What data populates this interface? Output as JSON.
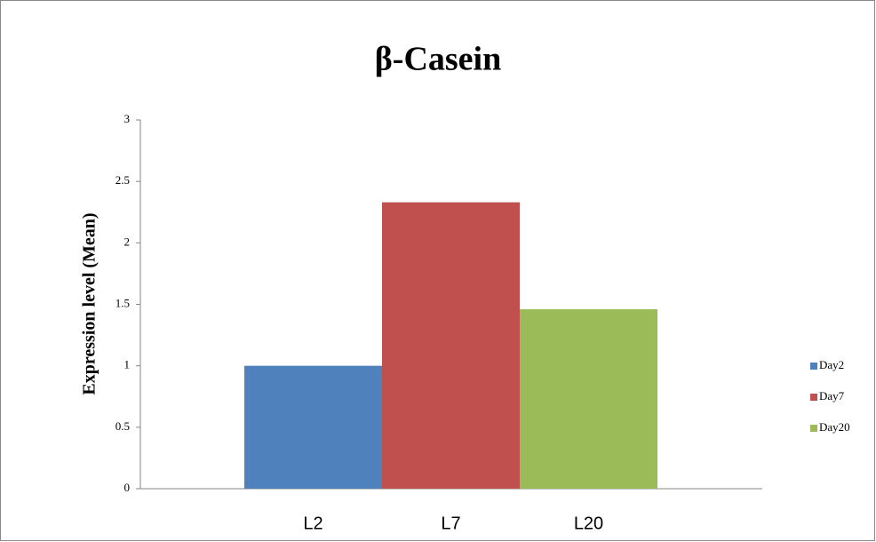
{
  "chart_data": {
    "type": "bar",
    "title": "β-Casein",
    "y_label": "Expression level (Mean)",
    "categories": [
      "L2",
      "L7",
      "L20"
    ],
    "series": [
      {
        "name": "Day2",
        "color": "#4f81bd",
        "values": [
          1.0,
          null,
          null
        ]
      },
      {
        "name": "Day7",
        "color": "#c0504d",
        "values": [
          null,
          2.33,
          null
        ]
      },
      {
        "name": "Day20",
        "color": "#9bbb59",
        "values": [
          null,
          null,
          1.46
        ]
      }
    ],
    "ylim": [
      0,
      3
    ],
    "yticks": [
      0,
      0.5,
      1,
      1.5,
      2,
      2.5,
      3
    ],
    "grid": false,
    "legend": "right"
  }
}
